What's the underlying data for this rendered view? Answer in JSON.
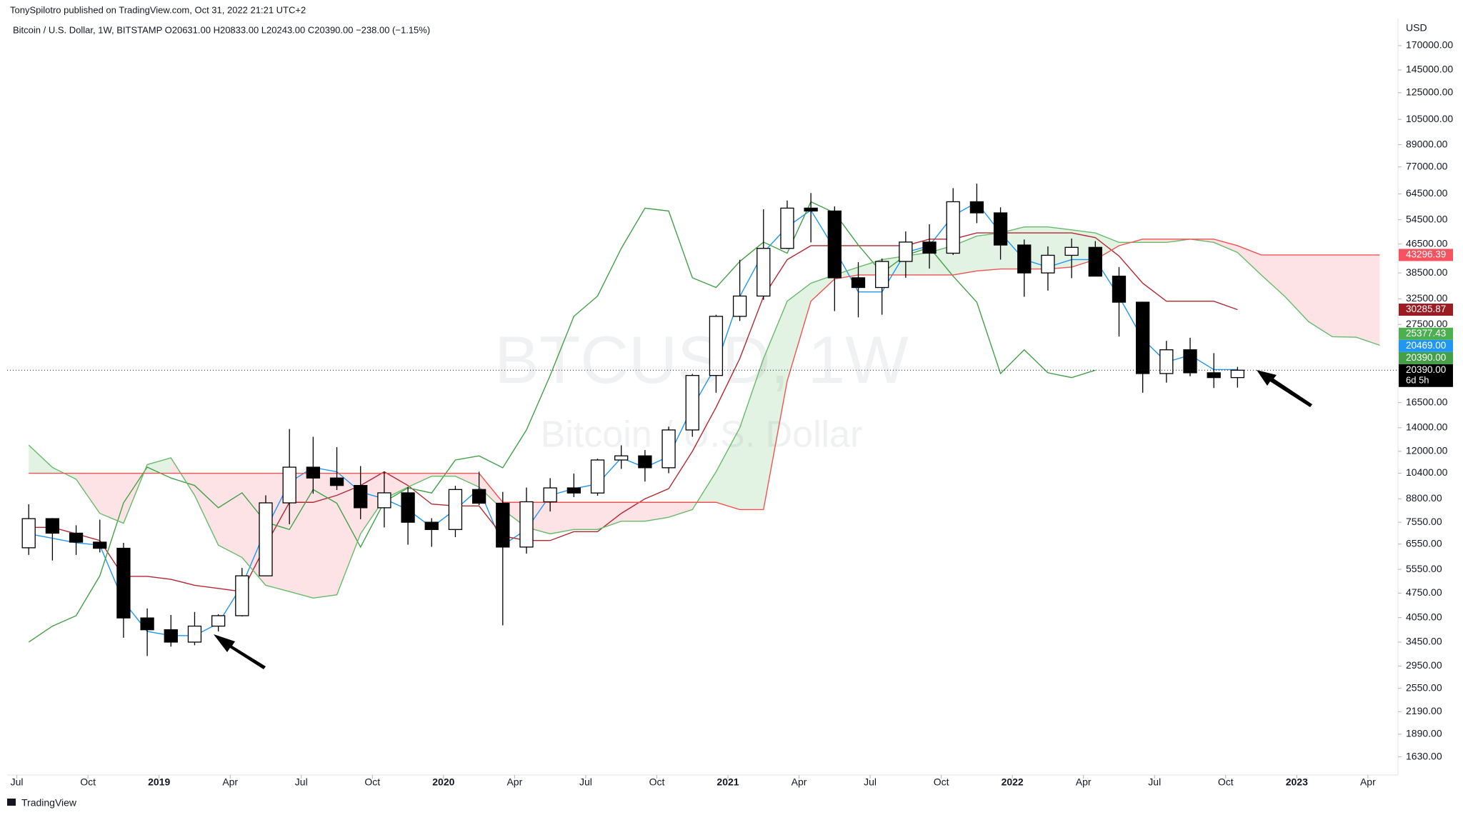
{
  "header": {
    "publisher": "TonySpilotro published on TradingView.com, Oct 31, 2022 21:21 UTC+2",
    "legend_line": "Bitcoin / U.S. Dollar, 1W, BITSTAMP  O20631.00 H20833.00 L20243.00 C20390.00 −238.00 (−1.15%)"
  },
  "footer": {
    "brand": "TradingView"
  },
  "chart_data": {
    "type": "candlestick",
    "watermark": "BTCUSD, 1W",
    "watermark_subtitle": "Bitcoin / U.S. Dollar",
    "axis_unit": "USD",
    "log_scale": true,
    "grid": false,
    "up_color": "#ffffff",
    "down_color": "#000000",
    "x": [
      "2018-07",
      "2018-08",
      "2018-09",
      "2018-10",
      "2018-11",
      "2018-12",
      "2019-01",
      "2019-02",
      "2019-03",
      "2019-04",
      "2019-05",
      "2019-06",
      "2019-07",
      "2019-08",
      "2019-09",
      "2019-10",
      "2019-11",
      "2019-12",
      "2020-01",
      "2020-02",
      "2020-03",
      "2020-04",
      "2020-05",
      "2020-06",
      "2020-07",
      "2020-08",
      "2020-09",
      "2020-10",
      "2020-11",
      "2020-12",
      "2021-01",
      "2021-02",
      "2021-03",
      "2021-04",
      "2021-05",
      "2021-06",
      "2021-07",
      "2021-08",
      "2021-09",
      "2021-10",
      "2021-11",
      "2021-12",
      "2022-01",
      "2022-02",
      "2022-03",
      "2022-04",
      "2022-05",
      "2022-06",
      "2022-07",
      "2022-08",
      "2022-09",
      "2022-10",
      "2022-11",
      "2022-12",
      "2023-01",
      "2023-02",
      "2023-03",
      "2023-04"
    ],
    "open": [
      6390,
      7730,
      7030,
      6630,
      6370,
      4040,
      3740,
      3450,
      3830,
      4100,
      5320,
      8570,
      10820,
      10080,
      9600,
      8300,
      9150,
      7550,
      7200,
      9350,
      8550,
      6420,
      8630,
      9450,
      9140,
      11340,
      11650,
      10780,
      13800,
      19700,
      28990,
      33100,
      45200,
      58800,
      57700,
      37300,
      35000,
      41500,
      47100,
      43800,
      61300,
      57000,
      46200,
      38500,
      43200,
      45500,
      37700,
      31800,
      19950,
      23300,
      20050,
      19430,
      null,
      null,
      null,
      null,
      null,
      null
    ],
    "high": [
      8490,
      7760,
      7400,
      7680,
      6600,
      4300,
      4120,
      4200,
      4140,
      5600,
      9000,
      13880,
      13200,
      12330,
      10900,
      10500,
      9500,
      7750,
      9580,
      10500,
      9200,
      9470,
      10070,
      10380,
      11440,
      12480,
      12100,
      14100,
      19900,
      29300,
      41950,
      58350,
      61800,
      64900,
      59500,
      41300,
      42300,
      50500,
      52900,
      67000,
      69000,
      59100,
      47900,
      45800,
      48200,
      47400,
      40000,
      31900,
      24700,
      25200,
      22800,
      20833,
      null,
      null,
      null,
      null,
      null,
      null
    ],
    "low": [
      6100,
      5880,
      6100,
      6200,
      3550,
      3150,
      3350,
      3380,
      3700,
      4080,
      5320,
      7450,
      9100,
      9320,
      7700,
      7300,
      6520,
      6430,
      6850,
      8450,
      3850,
      6150,
      8100,
      8900,
      8980,
      10700,
      9850,
      10400,
      13200,
      17600,
      28130,
      32300,
      45000,
      47000,
      30000,
      28800,
      29300,
      37300,
      39600,
      43300,
      53300,
      42000,
      32950,
      34300,
      37200,
      37700,
      25400,
      17600,
      18800,
      19600,
      18150,
      18200,
      null,
      null,
      null,
      null,
      null,
      null
    ],
    "close": [
      7730,
      7030,
      6630,
      6370,
      4040,
      3740,
      3450,
      3830,
      4100,
      5320,
      8570,
      10820,
      10080,
      9600,
      8300,
      9150,
      7550,
      7200,
      9350,
      8550,
      6420,
      8630,
      9450,
      9140,
      11340,
      11650,
      10780,
      13800,
      19700,
      28990,
      33100,
      45200,
      58800,
      57700,
      37300,
      35000,
      41500,
      47100,
      43800,
      61300,
      57000,
      46200,
      38500,
      43200,
      45500,
      37700,
      31800,
      19950,
      23300,
      20050,
      19430,
      20390,
      null,
      null,
      null,
      null,
      null,
      null
    ],
    "series": [
      {
        "name": "Conversion Line",
        "color": "#2196f3",
        "role": "line",
        "values": [
          7000,
          6800,
          6600,
          6500,
          4500,
          3700,
          3600,
          3600,
          3900,
          5000,
          7200,
          9800,
          10800,
          10500,
          9200,
          8800,
          8200,
          7300,
          8200,
          9400,
          6500,
          7200,
          9000,
          9400,
          9700,
          11500,
          10800,
          11600,
          16000,
          21000,
          33000,
          44000,
          52000,
          58000,
          45000,
          34000,
          34000,
          44000,
          46000,
          56000,
          61000,
          50000,
          42000,
          40000,
          42000,
          42000,
          33000,
          25000,
          21500,
          22500,
          20469,
          20469,
          null,
          null,
          null,
          null,
          null,
          null
        ]
      },
      {
        "name": "Base Line",
        "color": "#b22833",
        "role": "line",
        "values": [
          7300,
          7300,
          7000,
          6700,
          5300,
          5300,
          5200,
          5000,
          4900,
          4800,
          6500,
          8600,
          8600,
          9000,
          9600,
          10500,
          9600,
          8500,
          8400,
          8400,
          6900,
          6700,
          6700,
          7100,
          7100,
          8000,
          8800,
          9400,
          12000,
          16000,
          22000,
          33000,
          42000,
          46000,
          46000,
          46000,
          46000,
          46000,
          48000,
          48000,
          50000,
          50000,
          50000,
          50000,
          50000,
          48500,
          43000,
          36000,
          32000,
          32000,
          32000,
          30285,
          null,
          null,
          null,
          null,
          null,
          null
        ]
      },
      {
        "name": "Lagging Span",
        "color": "#43a047",
        "role": "line",
        "values": [
          3450,
          3830,
          4100,
          5320,
          8570,
          10820,
          10080,
          9600,
          8300,
          9150,
          7550,
          7200,
          9350,
          8550,
          6420,
          8630,
          9450,
          9140,
          11340,
          11650,
          10780,
          13800,
          19700,
          28990,
          33100,
          45200,
          58800,
          57700,
          37300,
          35000,
          41500,
          47100,
          43800,
          61300,
          57000,
          46200,
          38500,
          43200,
          45500,
          37700,
          31800,
          19950,
          23300,
          20050,
          19430,
          20390,
          null,
          null,
          null,
          null,
          null,
          null,
          null,
          null,
          null,
          null,
          null,
          null
        ]
      },
      {
        "name": "Leading Span A",
        "color": "#66bb6a",
        "role": "span_a",
        "values": [
          12500,
          10800,
          10000,
          8000,
          7500,
          11000,
          11500,
          9000,
          6500,
          6000,
          5000,
          4800,
          4600,
          4700,
          7000,
          8800,
          9500,
          10200,
          10200,
          9500,
          8200,
          7300,
          7000,
          7200,
          7200,
          7600,
          7600,
          7800,
          8200,
          10500,
          14000,
          22000,
          32000,
          36000,
          38000,
          40000,
          42000,
          43000,
          44000,
          46000,
          49000,
          50000,
          52000,
          52000,
          51000,
          50000,
          47000,
          47000,
          47000,
          48000,
          47000,
          44000,
          38000,
          33000,
          28000,
          25377,
          25300,
          24000
        ]
      },
      {
        "name": "Leading Span B",
        "color": "#ef5350",
        "role": "span_b",
        "values": [
          10400,
          10400,
          10400,
          10400,
          10400,
          10400,
          10400,
          10400,
          10400,
          10400,
          10400,
          10400,
          10400,
          10400,
          10400,
          10400,
          10400,
          10400,
          10400,
          10400,
          8600,
          8600,
          8600,
          8600,
          8600,
          8600,
          8600,
          8600,
          8600,
          8600,
          8200,
          8200,
          19000,
          32000,
          37000,
          38000,
          38000,
          38000,
          38000,
          38000,
          39000,
          39500,
          39500,
          39500,
          40000,
          42000,
          46000,
          48000,
          48000,
          48000,
          48000,
          46000,
          43296,
          43296,
          43296,
          43296,
          43296,
          43296
        ]
      }
    ],
    "cloud_up_color": "rgba(76,175,80,0.16)",
    "cloud_down_color": "rgba(242,54,69,0.14)",
    "ylim": [
      1475,
      202900
    ],
    "yticks": [
      {
        "value": 170000,
        "label": "170000.00"
      },
      {
        "value": 145000,
        "label": "145000.00"
      },
      {
        "value": 125000,
        "label": "125000.00"
      },
      {
        "value": 105000,
        "label": "105000.00"
      },
      {
        "value": 89000,
        "label": "89000.00"
      },
      {
        "value": 77000,
        "label": "77000.00"
      },
      {
        "value": 64500,
        "label": "64500.00"
      },
      {
        "value": 54500,
        "label": "54500.00"
      },
      {
        "value": 46500,
        "label": "46500.00"
      },
      {
        "value": 38500,
        "label": "38500.00"
      },
      {
        "value": 32500,
        "label": "32500.00"
      },
      {
        "value": 27500,
        "label": "27500.00"
      },
      {
        "value": 16500,
        "label": "16500.00"
      },
      {
        "value": 14000,
        "label": "14000.00"
      },
      {
        "value": 12000,
        "label": "12000.00"
      },
      {
        "value": 10400,
        "label": "10400.00"
      },
      {
        "value": 8800,
        "label": "8800.00"
      },
      {
        "value": 7550,
        "label": "7550.00"
      },
      {
        "value": 6550,
        "label": "6550.00"
      },
      {
        "value": 5550,
        "label": "5550.00"
      },
      {
        "value": 4750,
        "label": "4750.00"
      },
      {
        "value": 4050,
        "label": "4050.00"
      },
      {
        "value": 3450,
        "label": "3450.00"
      },
      {
        "value": 2950,
        "label": "2950.00"
      },
      {
        "value": 2550,
        "label": "2550.00"
      },
      {
        "value": 2190,
        "label": "2190.00"
      },
      {
        "value": 1890,
        "label": "1890.00"
      },
      {
        "value": 1630,
        "label": "1630.00"
      }
    ],
    "xticks": [
      {
        "value": "2018-07",
        "label": "Jul"
      },
      {
        "value": "2018-10",
        "label": "Oct"
      },
      {
        "value": "2019-01",
        "label": "2019"
      },
      {
        "value": "2019-04",
        "label": "Apr"
      },
      {
        "value": "2019-07",
        "label": "Jul"
      },
      {
        "value": "2019-10",
        "label": "Oct"
      },
      {
        "value": "2020-01",
        "label": "2020"
      },
      {
        "value": "2020-04",
        "label": "Apr"
      },
      {
        "value": "2020-07",
        "label": "Jul"
      },
      {
        "value": "2020-10",
        "label": "Oct"
      },
      {
        "value": "2021-01",
        "label": "2021"
      },
      {
        "value": "2021-04",
        "label": "Apr"
      },
      {
        "value": "2021-07",
        "label": "Jul"
      },
      {
        "value": "2021-10",
        "label": "Oct"
      },
      {
        "value": "2022-01",
        "label": "2022"
      },
      {
        "value": "2022-04",
        "label": "Apr"
      },
      {
        "value": "2022-07",
        "label": "Jul"
      },
      {
        "value": "2022-10",
        "label": "Oct"
      },
      {
        "value": "2023-01",
        "label": "2023"
      },
      {
        "value": "2023-04",
        "label": "Apr"
      }
    ],
    "price_labels": [
      {
        "value": 43296.39,
        "label": "43296.39",
        "color": "#f7525f"
      },
      {
        "value": 30285.87,
        "label": "30285.87",
        "color": "#9b1c22"
      },
      {
        "value": 25377.43,
        "label": "25377.43",
        "color": "#4caf50"
      },
      {
        "value": 20469,
        "label": "20469.00",
        "color": "#2196f3"
      },
      {
        "value": 20390,
        "label": "20390.00",
        "color": "#43a047"
      },
      {
        "value": 20390,
        "label": "20390.00",
        "color": "#000000"
      }
    ],
    "countdown": "6d 5h",
    "current_price_line": true
  }
}
